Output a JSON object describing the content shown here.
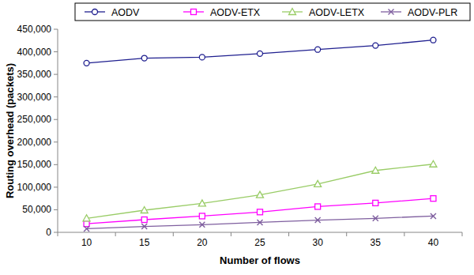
{
  "chart_data": {
    "type": "line",
    "x_label": "Number of flows",
    "y_label": "Routing overhead (packets)",
    "categories": [
      "10",
      "15",
      "20",
      "25",
      "30",
      "35",
      "40"
    ],
    "ylim": [
      0,
      450000
    ],
    "yticks": [
      0,
      {
        "value": 50000,
        "label": "50,000"
      },
      {
        "value": 100000,
        "label": "100,000"
      },
      {
        "value": 150000,
        "label": "150,000"
      },
      {
        "value": 200000,
        "label": "200,000"
      },
      {
        "value": 250000,
        "label": "250,000"
      },
      {
        "value": 300000,
        "label": "300,000"
      },
      {
        "value": 350000,
        "label": "350,000"
      },
      {
        "value": 400000,
        "label": "400,000"
      },
      {
        "value": 450000,
        "label": "450,000"
      }
    ],
    "grid": false,
    "legend": "top",
    "series": [
      {
        "name": "AODV",
        "color": "#1f1f8f",
        "marker": "circle",
        "values": [
          375000,
          386000,
          388000,
          396000,
          405000,
          414000,
          426000
        ]
      },
      {
        "name": "AODV-ETX",
        "color": "#ff00ff",
        "marker": "square",
        "values": [
          19000,
          28000,
          36000,
          45000,
          57000,
          65000,
          75000
        ]
      },
      {
        "name": "AODV-LETX",
        "color": "#99cc66",
        "marker": "triangle",
        "values": [
          31000,
          49000,
          64000,
          83000,
          107000,
          137000,
          151000
        ]
      },
      {
        "name": "AODV-PLR",
        "color": "#7f5f9f",
        "marker": "x",
        "values": [
          8000,
          13000,
          17000,
          22000,
          27000,
          31000,
          36000
        ]
      }
    ]
  }
}
